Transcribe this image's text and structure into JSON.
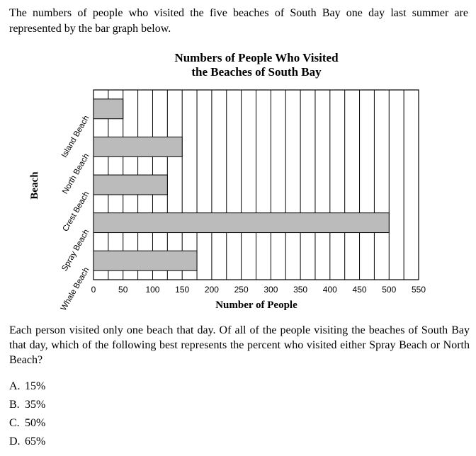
{
  "intro_text": "The numbers of people who visited the five beaches of South Bay one day last summer are represented by the bar graph below.",
  "chart_data": {
    "type": "bar",
    "orientation": "horizontal",
    "title_line1": "Numbers of People Who Visited",
    "title_line2": "the Beaches of South Bay",
    "xlabel": "Number of People",
    "ylabel": "Beach",
    "categories": [
      "Island Beach",
      "North Beach",
      "Crest Beach",
      "Spray Beach",
      "Whale Beach"
    ],
    "values": [
      50,
      150,
      125,
      500,
      175
    ],
    "xlim": [
      0,
      550
    ],
    "x_ticks": [
      0,
      50,
      100,
      150,
      200,
      250,
      300,
      350,
      400,
      450,
      500,
      550
    ],
    "minor_grid_step": 25,
    "grid": true,
    "bar_color": "#bbbbbb"
  },
  "question_text": "Each person visited only one beach that day. Of all of the people visiting the beaches of South Bay that day, which of the following best represents the percent who visited either Spray Beach or North Beach?",
  "choices": [
    {
      "letter": "A.",
      "text": "15%"
    },
    {
      "letter": "B.",
      "text": "35%"
    },
    {
      "letter": "C.",
      "text": "50%"
    },
    {
      "letter": "D.",
      "text": "65%"
    }
  ]
}
